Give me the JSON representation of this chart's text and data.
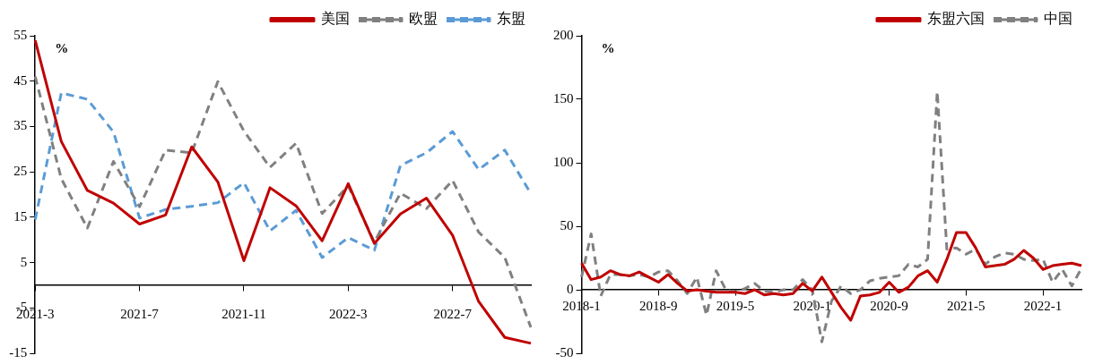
{
  "chart_data": [
    {
      "type": "line",
      "ylabel": "%",
      "legend": "top right",
      "categories": [
        "2021-3",
        null,
        null,
        null,
        "2021-7",
        null,
        null,
        null,
        "2021-11",
        null,
        null,
        null,
        "2022-3",
        null,
        null,
        null,
        "2022-7",
        null,
        null,
        null
      ],
      "ylim": [
        -15,
        55
      ],
      "yticks": [
        55,
        45,
        35,
        25,
        15,
        5,
        -5,
        -15
      ],
      "series": [
        {
          "name": "美国",
          "color": "#c00000",
          "line_style": "solid",
          "values": [
            54,
            31.7,
            20.9,
            18.1,
            13.5,
            15.5,
            30.5,
            22.8,
            5.4,
            21.5,
            17.5,
            9.8,
            22.4,
            9.2,
            15.7,
            19.2,
            11,
            -3.6,
            -11.5,
            -12.8
          ]
        },
        {
          "name": "欧盟",
          "color": "#808080",
          "line_style": "dashed",
          "values": [
            46,
            23.5,
            12.6,
            27.3,
            17.3,
            29.8,
            29.2,
            44.9,
            34,
            26,
            31.3,
            15.8,
            21.9,
            9.5,
            20.3,
            16.9,
            23.1,
            11.7,
            6.1,
            -9.3
          ]
        },
        {
          "name": "东盟",
          "color": "#5b9bd5",
          "line_style": "dashed",
          "values": [
            14.5,
            42.4,
            41,
            33.8,
            14.8,
            16.7,
            17.4,
            18.2,
            22.6,
            12,
            16.5,
            6.1,
            10.5,
            7.7,
            26.4,
            29.2,
            33.9,
            25.5,
            29.8,
            20.2
          ]
        }
      ]
    },
    {
      "type": "line",
      "ylabel": "%",
      "legend": "top right",
      "categories": [
        "2018-1",
        null,
        null,
        null,
        null,
        null,
        null,
        null,
        "2018-9",
        null,
        null,
        null,
        null,
        null,
        null,
        null,
        "2019-5",
        null,
        null,
        null,
        null,
        null,
        null,
        null,
        "2020-1",
        null,
        null,
        null,
        null,
        null,
        null,
        null,
        "2020-9",
        null,
        null,
        null,
        null,
        null,
        null,
        null,
        "2021-5",
        null,
        null,
        null,
        null,
        null,
        null,
        null,
        "2022-1",
        null,
        null,
        null,
        null
      ],
      "ylim": [
        -50,
        200
      ],
      "yticks": [
        -50,
        0,
        50,
        100,
        150,
        200
      ],
      "series": [
        {
          "name": "东盟六国",
          "color": "#c00000",
          "line_style": "solid",
          "values": [
            21,
            8,
            10,
            15,
            12,
            11,
            14,
            10,
            6,
            12,
            5,
            -1,
            0,
            -1,
            -2,
            -2,
            -2,
            -3,
            0,
            -4,
            -3,
            -4,
            -3,
            5,
            -1,
            10,
            -2,
            -14,
            -24,
            -5,
            -4,
            -2,
            6,
            -2,
            2,
            11,
            15,
            6,
            24,
            45,
            45,
            33,
            18,
            19,
            20,
            24,
            31,
            25,
            16,
            19,
            20,
            21,
            19
          ]
        },
        {
          "name": "中国",
          "color": "#808080",
          "line_style": "dashed",
          "values": [
            10,
            44,
            -5,
            12,
            12,
            11,
            12,
            10,
            14,
            15,
            7,
            -3,
            10,
            -20,
            15,
            0,
            -2,
            1,
            5,
            -1,
            -2,
            0,
            0,
            8,
            0,
            -41,
            -9,
            3,
            -3,
            0,
            7,
            9,
            10,
            11,
            20,
            18,
            24,
            156,
            32,
            33,
            28,
            32,
            20,
            26,
            29,
            28,
            24,
            23,
            24,
            6,
            16,
            3,
            17
          ]
        }
      ]
    }
  ]
}
